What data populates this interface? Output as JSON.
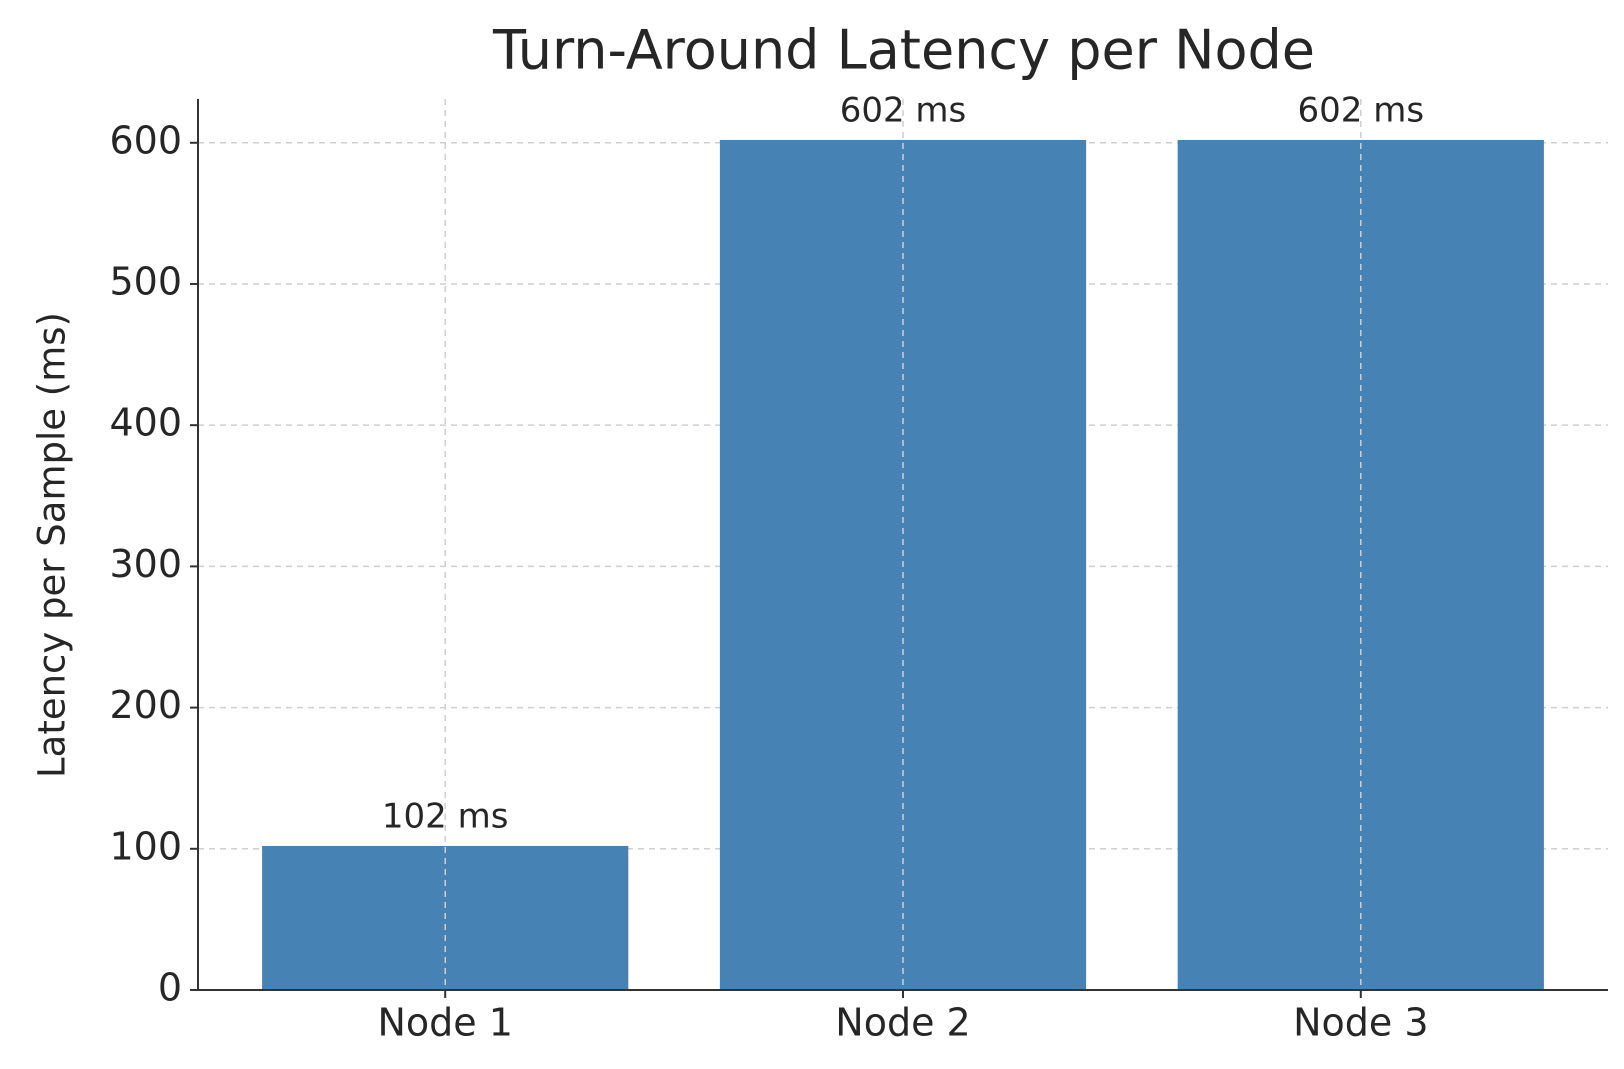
{
  "chart_data": {
    "type": "bar",
    "title": "Turn-Around Latency per Node",
    "ylabel": "Latency per Sample (ms)",
    "categories": [
      "Node 1",
      "Node 2",
      "Node 3"
    ],
    "values": [
      102,
      602,
      602
    ],
    "value_labels": [
      "102 ms",
      "602 ms",
      "602 ms"
    ],
    "color": "#4682b4",
    "ylim": [
      0,
      631
    ],
    "yticks": [
      0,
      100,
      200,
      300,
      400,
      500,
      600
    ],
    "grid": true
  }
}
